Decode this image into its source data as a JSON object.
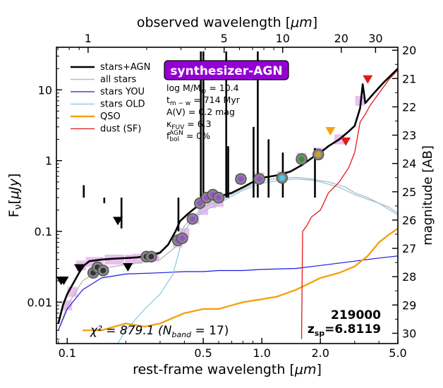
{
  "chart_data": {
    "type": "line",
    "x_scale": "log",
    "y_scale": "log",
    "xlabel": "rest-frame wavelength [μm]",
    "xlabel_parts": [
      "rest-frame wavelength [",
      "μm",
      "]"
    ],
    "x2label": "observed wavelength [μm]",
    "x2label_parts": [
      "observed wavelength [",
      "μm",
      "]"
    ],
    "ylabel": "Fν[μJy]",
    "ylabel_parts": [
      "F",
      "ν",
      "[",
      "μJy",
      "]"
    ],
    "y2label": "magnitude [AB]",
    "xlim": [
      0.088,
      5.0
    ],
    "ylim": [
      0.0026,
      40
    ],
    "redshift": 6.8119,
    "x_ticks": [
      {
        "value": 0.1,
        "label": "0.1"
      },
      {
        "value": 0.5,
        "label": "0.5"
      },
      {
        "value": 1.0,
        "label": "1.0"
      },
      {
        "value": 2.0,
        "label": "2.0"
      },
      {
        "value": 5.0,
        "label": "5.0"
      }
    ],
    "x2_ticks": [
      {
        "value": 1,
        "label": "1"
      },
      {
        "value": 5,
        "label": "5"
      },
      {
        "value": 10,
        "label": "10"
      },
      {
        "value": 20,
        "label": "20"
      },
      {
        "value": 30,
        "label": "30"
      }
    ],
    "y_ticks": [
      {
        "value": 0.01,
        "label": "0.01"
      },
      {
        "value": 0.1,
        "label": "0.1"
      },
      {
        "value": 1,
        "label": "1"
      },
      {
        "value": 10,
        "label": "10"
      }
    ],
    "mag_ticks": [
      "20",
      "21",
      "22",
      "23",
      "24",
      "25",
      "26",
      "27",
      "28",
      "29",
      "30"
    ],
    "model_name": "synthesizer-AGN",
    "params": [
      {
        "label": "log M/M",
        "sub": "⊙",
        "value": " = 10.4"
      },
      {
        "label": "t",
        "sub": "m − w",
        "value": " = 714 Myr"
      },
      {
        "label": "A(V) = 0.2 mag",
        "sub": "",
        "value": ""
      },
      {
        "label": "κ",
        "sub": "FUV",
        "value": " = 6.3"
      },
      {
        "label": "f",
        "sub": "bol",
        "sup": "AGN",
        "value": " = 0%"
      }
    ],
    "id_label": "219000",
    "z_label_prefix": "z",
    "z_label_sub": "sp",
    "z_label_value": "=6.8119",
    "chi2_label": "χ² = 879.1 (N",
    "chi2_sub": "band",
    "chi2_end": " = 17)",
    "legend_position": "top-left",
    "series": [
      {
        "name": "stars+AGN",
        "color": "#000000",
        "width": 2.6,
        "points": [
          [
            0.09,
            0.005
          ],
          [
            0.095,
            0.009
          ],
          [
            0.1,
            0.013
          ],
          [
            0.108,
            0.019
          ],
          [
            0.115,
            0.026
          ],
          [
            0.122,
            0.033
          ],
          [
            0.13,
            0.038
          ],
          [
            0.15,
            0.04
          ],
          [
            0.17,
            0.041
          ],
          [
            0.2,
            0.042
          ],
          [
            0.23,
            0.043
          ],
          [
            0.27,
            0.046
          ],
          [
            0.3,
            0.05
          ],
          [
            0.33,
            0.065
          ],
          [
            0.36,
            0.1
          ],
          [
            0.38,
            0.14
          ],
          [
            0.42,
            0.18
          ],
          [
            0.46,
            0.22
          ],
          [
            0.5,
            0.26
          ],
          [
            0.55,
            0.29
          ],
          [
            0.6,
            0.31
          ],
          [
            0.7,
            0.35
          ],
          [
            0.8,
            0.42
          ],
          [
            0.9,
            0.5
          ],
          [
            1.0,
            0.57
          ],
          [
            1.2,
            0.62
          ],
          [
            1.4,
            0.7
          ],
          [
            1.6,
            0.86
          ],
          [
            1.8,
            1.08
          ],
          [
            2.0,
            1.3
          ],
          [
            2.2,
            1.6
          ],
          [
            2.5,
            2.0
          ],
          [
            2.8,
            2.6
          ],
          [
            3.0,
            3.1
          ],
          [
            3.2,
            5.5
          ],
          [
            3.3,
            12.0
          ],
          [
            3.4,
            6.5
          ],
          [
            3.7,
            8.5
          ],
          [
            4.2,
            12.5
          ],
          [
            5.0,
            20.0
          ]
        ]
      },
      {
        "name": "all stars",
        "color": "#bbbbbb",
        "width": 1.4,
        "points": [
          [
            0.09,
            0.004
          ],
          [
            0.1,
            0.009
          ],
          [
            0.12,
            0.02
          ],
          [
            0.15,
            0.03
          ],
          [
            0.2,
            0.034
          ],
          [
            0.3,
            0.04
          ],
          [
            0.36,
            0.06
          ],
          [
            0.4,
            0.12
          ],
          [
            0.5,
            0.22
          ],
          [
            0.6,
            0.27
          ],
          [
            0.8,
            0.4
          ],
          [
            1.0,
            0.52
          ],
          [
            1.2,
            0.56
          ],
          [
            1.5,
            0.58
          ],
          [
            1.8,
            0.55
          ],
          [
            2.0,
            0.52
          ],
          [
            2.2,
            0.5
          ],
          [
            2.5,
            0.45
          ],
          [
            2.7,
            0.42
          ],
          [
            3.0,
            0.35
          ],
          [
            3.5,
            0.3
          ],
          [
            4.0,
            0.25
          ],
          [
            4.5,
            0.22
          ],
          [
            5.0,
            0.18
          ]
        ]
      },
      {
        "name": "stars YOU",
        "color": "#1a1adf",
        "width": 1.2,
        "points": [
          [
            0.09,
            0.004
          ],
          [
            0.1,
            0.008
          ],
          [
            0.12,
            0.015
          ],
          [
            0.15,
            0.022
          ],
          [
            0.2,
            0.025
          ],
          [
            0.3,
            0.026
          ],
          [
            0.4,
            0.027
          ],
          [
            0.5,
            0.027
          ],
          [
            0.6,
            0.028
          ],
          [
            0.8,
            0.028
          ],
          [
            1.0,
            0.029
          ],
          [
            1.5,
            0.03
          ],
          [
            2.0,
            0.033
          ],
          [
            3.0,
            0.038
          ],
          [
            4.0,
            0.042
          ],
          [
            5.0,
            0.045
          ]
        ]
      },
      {
        "name": "stars OLD",
        "color": "#88c4e6",
        "width": 1.2,
        "points": [
          [
            0.16,
            0.0015
          ],
          [
            0.2,
            0.004
          ],
          [
            0.25,
            0.008
          ],
          [
            0.3,
            0.013
          ],
          [
            0.35,
            0.025
          ],
          [
            0.4,
            0.1
          ],
          [
            0.45,
            0.16
          ],
          [
            0.5,
            0.19
          ],
          [
            0.6,
            0.25
          ],
          [
            0.8,
            0.38
          ],
          [
            1.0,
            0.48
          ],
          [
            1.2,
            0.52
          ],
          [
            1.5,
            0.55
          ],
          [
            1.8,
            0.53
          ],
          [
            2.0,
            0.5
          ],
          [
            2.5,
            0.42
          ],
          [
            3.0,
            0.33
          ],
          [
            4.0,
            0.25
          ],
          [
            5.0,
            0.17
          ]
        ]
      },
      {
        "name": "QSO",
        "color": "#f5a20f",
        "width": 2.4,
        "points": [
          [
            0.12,
            0.004
          ],
          [
            0.15,
            0.004
          ],
          [
            0.2,
            0.005
          ],
          [
            0.25,
            0.0045
          ],
          [
            0.3,
            0.005
          ],
          [
            0.4,
            0.007
          ],
          [
            0.5,
            0.008
          ],
          [
            0.6,
            0.008
          ],
          [
            0.7,
            0.009
          ],
          [
            0.8,
            0.01
          ],
          [
            1.0,
            0.011
          ],
          [
            1.2,
            0.012
          ],
          [
            1.5,
            0.015
          ],
          [
            2.0,
            0.022
          ],
          [
            2.5,
            0.026
          ],
          [
            3.0,
            0.032
          ],
          [
            3.5,
            0.045
          ],
          [
            4.0,
            0.07
          ],
          [
            4.5,
            0.09
          ],
          [
            5.0,
            0.11
          ]
        ]
      },
      {
        "name": "dust (SF)",
        "color": "#e21a1a",
        "width": 1.3,
        "points": [
          [
            1.6,
            0.003
          ],
          [
            1.62,
            0.1
          ],
          [
            1.7,
            0.12
          ],
          [
            1.8,
            0.16
          ],
          [
            2.0,
            0.2
          ],
          [
            2.2,
            0.35
          ],
          [
            2.5,
            0.5
          ],
          [
            2.8,
            0.8
          ],
          [
            3.0,
            1.3
          ],
          [
            3.2,
            3.5
          ],
          [
            3.4,
            4.5
          ],
          [
            3.6,
            6.0
          ],
          [
            4.0,
            9.0
          ],
          [
            4.5,
            14.0
          ],
          [
            5.0,
            19.0
          ]
        ]
      }
    ],
    "photometry_markers": [
      {
        "x": 0.136,
        "y": 0.026,
        "type": "dark"
      },
      {
        "x": 0.143,
        "y": 0.031,
        "type": "dark"
      },
      {
        "x": 0.153,
        "y": 0.028,
        "type": "dark"
      },
      {
        "x": 0.255,
        "y": 0.044,
        "type": "dark"
      },
      {
        "x": 0.27,
        "y": 0.044,
        "type": "dark"
      },
      {
        "x": 0.37,
        "y": 0.075,
        "type": "purple"
      },
      {
        "x": 0.39,
        "y": 0.08,
        "type": "purple"
      },
      {
        "x": 0.44,
        "y": 0.15,
        "type": "purple"
      },
      {
        "x": 0.48,
        "y": 0.25,
        "type": "purple"
      },
      {
        "x": 0.52,
        "y": 0.3,
        "type": "purple"
      },
      {
        "x": 0.56,
        "y": 0.33,
        "type": "purple"
      },
      {
        "x": 0.6,
        "y": 0.3,
        "type": "purple"
      },
      {
        "x": 0.78,
        "y": 0.55,
        "type": "purple"
      },
      {
        "x": 0.97,
        "y": 0.55,
        "type": "purple"
      },
      {
        "x": 1.27,
        "y": 0.57,
        "type": "cyan"
      },
      {
        "x": 1.6,
        "y": 1.05,
        "type": "green"
      },
      {
        "x": 1.95,
        "y": 1.22,
        "type": "gold"
      }
    ],
    "model_boxes": [
      [
        0.1,
        0.009
      ],
      [
        0.106,
        0.014
      ],
      [
        0.118,
        0.033
      ],
      [
        0.132,
        0.037
      ],
      [
        0.145,
        0.037
      ],
      [
        0.165,
        0.04
      ],
      [
        0.185,
        0.04
      ],
      [
        0.21,
        0.04
      ],
      [
        0.23,
        0.041
      ],
      [
        0.26,
        0.043
      ],
      [
        0.28,
        0.044
      ],
      [
        0.37,
        0.07
      ],
      [
        0.4,
        0.095
      ],
      [
        0.45,
        0.15
      ],
      [
        0.5,
        0.2
      ],
      [
        0.55,
        0.25
      ],
      [
        0.6,
        0.26
      ],
      [
        0.78,
        0.55
      ],
      [
        0.97,
        0.58
      ],
      [
        1.27,
        0.6
      ],
      [
        1.6,
        1.1
      ],
      [
        1.95,
        1.3
      ],
      [
        2.5,
        2.0
      ],
      [
        3.2,
        7.0
      ]
    ],
    "upper_limits": [
      {
        "x": 0.093,
        "y": 0.02,
        "color": "#000000"
      },
      {
        "x": 0.096,
        "y": 0.02,
        "color": "#000000"
      },
      {
        "x": 0.115,
        "y": 0.03,
        "color": "#000000"
      },
      {
        "x": 0.182,
        "y": 0.14,
        "color": "#000000"
      },
      {
        "x": 0.205,
        "y": 0.031,
        "color": "#000000"
      },
      {
        "x": 2.25,
        "y": 2.6,
        "color": "#f5a20f"
      },
      {
        "x": 2.7,
        "y": 1.85,
        "color": "#e21a1a"
      },
      {
        "x": 3.5,
        "y": 14.0,
        "color": "#e21a1a"
      }
    ],
    "emission_lines": [
      {
        "x": 0.1216,
        "y": 0.45,
        "color": "#000000"
      },
      {
        "x": 0.155,
        "y": 0.25,
        "color": "#000000"
      },
      {
        "x": 0.19,
        "y": 0.11,
        "color": "#000000"
      },
      {
        "x": 0.3727,
        "y": 0.1,
        "color": "#000000"
      },
      {
        "x": 0.486,
        "y": 35,
        "color": "#000000"
      },
      {
        "x": 0.5007,
        "y": 35,
        "color": "#000000"
      },
      {
        "x": 0.6563,
        "y": 35,
        "color": "#000000"
      },
      {
        "x": 0.6716,
        "y": 1.6,
        "color": "#000000"
      },
      {
        "x": 0.9069,
        "y": 3.0,
        "color": "#000000"
      },
      {
        "x": 0.9531,
        "y": 35,
        "color": "#000000"
      },
      {
        "x": 1.083,
        "y": 2.0,
        "color": "#000000"
      },
      {
        "x": 1.282,
        "y": 1.3,
        "color": "#000000"
      },
      {
        "x": 1.875,
        "y": 1.5,
        "color": "#000000"
      }
    ]
  }
}
